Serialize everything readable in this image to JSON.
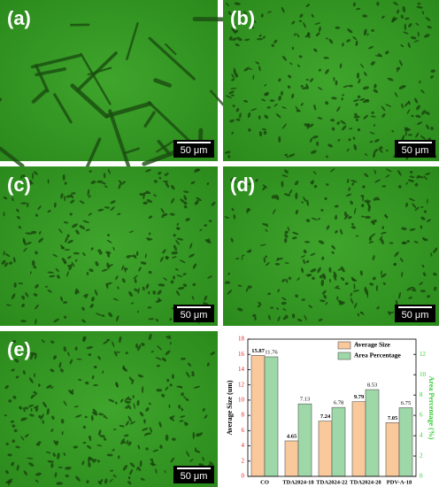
{
  "panels": [
    {
      "label": "(a)",
      "scale_bar": "50 μm"
    },
    {
      "label": "(b)",
      "scale_bar": "50 μm"
    },
    {
      "label": "(c)",
      "scale_bar": "50 μm"
    },
    {
      "label": "(d)",
      "scale_bar": "50 μm"
    },
    {
      "label": "(e)",
      "scale_bar": "50 μm"
    }
  ],
  "chart_data": {
    "type": "bar",
    "categories": [
      "CO",
      "TDA2024-18",
      "TDA2024-22",
      "TDA2024-28",
      "PDV-A-18"
    ],
    "series": [
      {
        "name": "Average Size",
        "color": "#f9c89b",
        "values": [
          15.87,
          4.65,
          7.24,
          9.79,
          7.05
        ]
      },
      {
        "name": "Area Percentage",
        "color": "#9fd8a8",
        "values": [
          11.76,
          7.13,
          6.78,
          8.53,
          6.75
        ],
        "axis": "y2"
      }
    ],
    "y_label": "Average Size (um)",
    "y2_label": "Area Percentage (%)",
    "ylim": [
      0,
      18
    ],
    "yticks": [
      0,
      2,
      4,
      6,
      8,
      10,
      12,
      14,
      16,
      18
    ],
    "y2lim": [
      0,
      13.5
    ],
    "y2ticks": [
      0,
      2,
      4,
      6,
      8,
      10,
      12
    ],
    "y_color": "#e02020",
    "y2_color": "#33cc33",
    "legend": "upper right"
  }
}
